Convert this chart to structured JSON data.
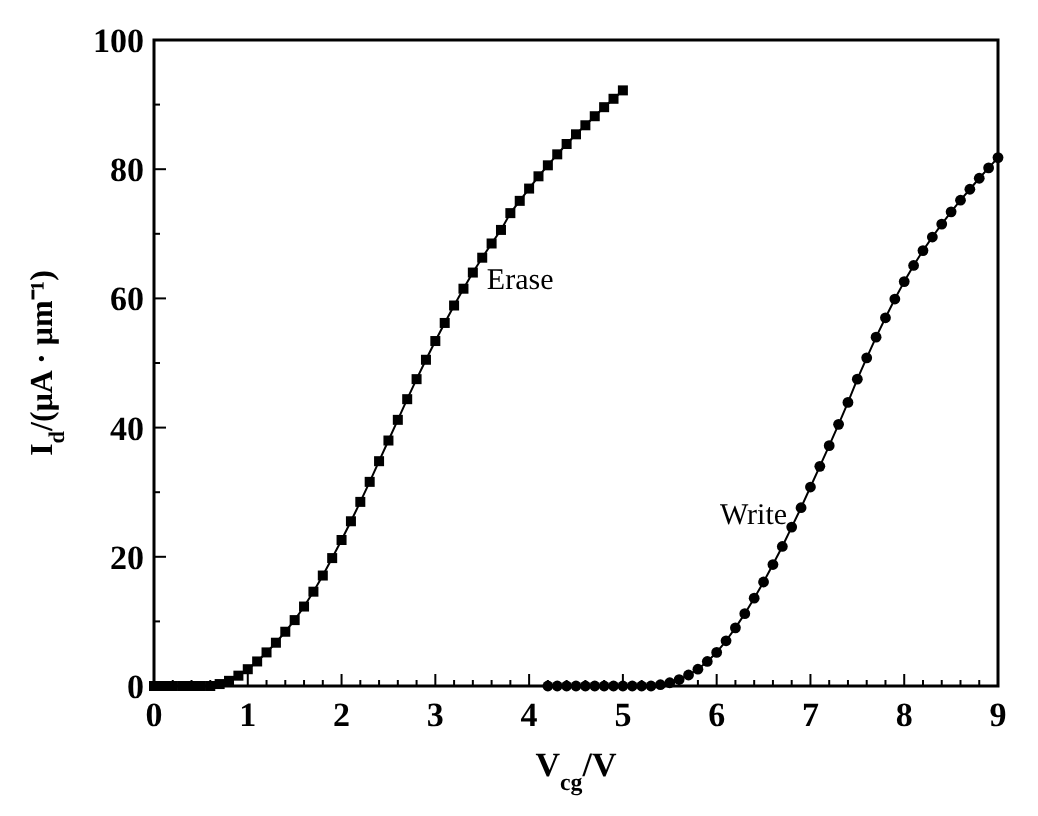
{
  "chart_data": {
    "type": "line",
    "xlabel": "V$_{cg}$/V",
    "ylabel": "I$_{d}$/(μA · μm⁻¹)",
    "xlim": [
      0,
      9
    ],
    "ylim": [
      0,
      100
    ],
    "xticks": [
      0,
      {
        "value": 0.2,
        "label": null
      },
      {
        "value": 0.4,
        "label": null
      },
      {
        "value": 0.6,
        "label": null
      },
      {
        "value": 0.8,
        "label": null
      },
      1,
      {
        "value": 1.2,
        "label": null
      },
      {
        "value": 1.4,
        "label": null
      },
      {
        "value": 1.6,
        "label": null
      },
      {
        "value": 1.8,
        "label": null
      },
      2,
      {
        "value": 2.2,
        "label": null
      },
      {
        "value": 2.4,
        "label": null
      },
      {
        "value": 2.6,
        "label": null
      },
      {
        "value": 2.8,
        "label": null
      },
      3,
      {
        "value": 3.2,
        "label": null
      },
      {
        "value": 3.4,
        "label": null
      },
      {
        "value": 3.6,
        "label": null
      },
      {
        "value": 3.8,
        "label": null
      },
      4,
      {
        "value": 4.2,
        "label": null
      },
      {
        "value": 4.4,
        "label": null
      },
      {
        "value": 4.6,
        "label": null
      },
      {
        "value": 4.8,
        "label": null
      },
      5,
      {
        "value": 5.2,
        "label": null
      },
      {
        "value": 5.4,
        "label": null
      },
      {
        "value": 5.6,
        "label": null
      },
      {
        "value": 5.8,
        "label": null
      },
      6,
      {
        "value": 6.2,
        "label": null
      },
      {
        "value": 6.4,
        "label": null
      },
      {
        "value": 6.6,
        "label": null
      },
      {
        "value": 6.8,
        "label": null
      },
      7,
      {
        "value": 7.2,
        "label": null
      },
      {
        "value": 7.4,
        "label": null
      },
      {
        "value": 7.6,
        "label": null
      },
      {
        "value": 7.8,
        "label": null
      },
      8,
      {
        "value": 8.2,
        "label": null
      },
      {
        "value": 8.4,
        "label": null
      },
      {
        "value": 8.6,
        "label": null
      },
      {
        "value": 8.8,
        "label": null
      },
      9
    ],
    "yticks": [
      0,
      {
        "value": 10,
        "label": null
      },
      20,
      {
        "value": 30,
        "label": null
      },
      40,
      {
        "value": 50,
        "label": null
      },
      60,
      {
        "value": 70,
        "label": null
      },
      80,
      {
        "value": 90,
        "label": null
      },
      100
    ],
    "grid": false,
    "legend": false,
    "series": [
      {
        "name": "Erase",
        "color": "#000000",
        "marker": "square",
        "x": [
          0,
          0.1,
          0.2,
          0.3,
          0.4,
          0.5,
          0.6,
          0.7,
          0.8,
          0.9,
          1.0,
          1.1,
          1.2,
          1.3,
          1.4,
          1.5,
          1.6,
          1.7,
          1.8,
          1.9,
          2.0,
          2.1,
          2.2,
          2.3,
          2.4,
          2.5,
          2.6,
          2.7,
          2.8,
          2.9,
          3.0,
          3.1,
          3.2,
          3.3,
          3.4,
          3.5,
          3.6,
          3.7,
          3.8,
          3.9,
          4.0,
          4.1,
          4.2,
          4.3,
          4.4,
          4.5,
          4.6,
          4.7,
          4.8,
          4.9,
          5.0
        ],
        "values": [
          0,
          0,
          0,
          0,
          0,
          0,
          0,
          0.3,
          0.8,
          1.6,
          2.6,
          3.8,
          5.2,
          6.7,
          8.4,
          10.2,
          12.3,
          14.6,
          17.1,
          19.8,
          22.6,
          25.5,
          28.5,
          31.6,
          34.8,
          38.0,
          41.2,
          44.4,
          47.5,
          50.5,
          53.4,
          56.2,
          58.9,
          61.5,
          64.0,
          66.3,
          68.5,
          70.6,
          73.2,
          75.1,
          77.0,
          78.9,
          80.6,
          82.3,
          83.9,
          85.4,
          86.8,
          88.2,
          89.6,
          90.9,
          92.2
        ]
      },
      {
        "name": "Write",
        "color": "#000000",
        "marker": "circle",
        "x": [
          4.2,
          4.3,
          4.4,
          4.5,
          4.6,
          4.7,
          4.8,
          4.9,
          5.0,
          5.1,
          5.2,
          5.3,
          5.4,
          5.5,
          5.6,
          5.7,
          5.8,
          5.9,
          6.0,
          6.1,
          6.2,
          6.3,
          6.4,
          6.5,
          6.6,
          6.7,
          6.8,
          6.9,
          7.0,
          7.1,
          7.2,
          7.3,
          7.4,
          7.5,
          7.6,
          7.7,
          7.8,
          7.9,
          8.0,
          8.1,
          8.2,
          8.3,
          8.4,
          8.5,
          8.6,
          8.7,
          8.8,
          8.9,
          9.0
        ],
        "values": [
          0,
          0,
          0,
          0,
          0,
          0,
          0,
          0,
          0,
          0,
          0,
          0,
          0.2,
          0.5,
          1.0,
          1.7,
          2.6,
          3.8,
          5.2,
          7.0,
          9.0,
          11.2,
          13.6,
          16.1,
          18.8,
          21.6,
          24.6,
          27.6,
          30.8,
          34.0,
          37.2,
          40.5,
          43.9,
          47.5,
          50.8,
          54.0,
          57.0,
          59.9,
          62.6,
          65.1,
          67.4,
          69.5,
          71.5,
          73.4,
          75.2,
          76.9,
          78.6,
          80.2,
          81.8
        ]
      }
    ]
  }
}
